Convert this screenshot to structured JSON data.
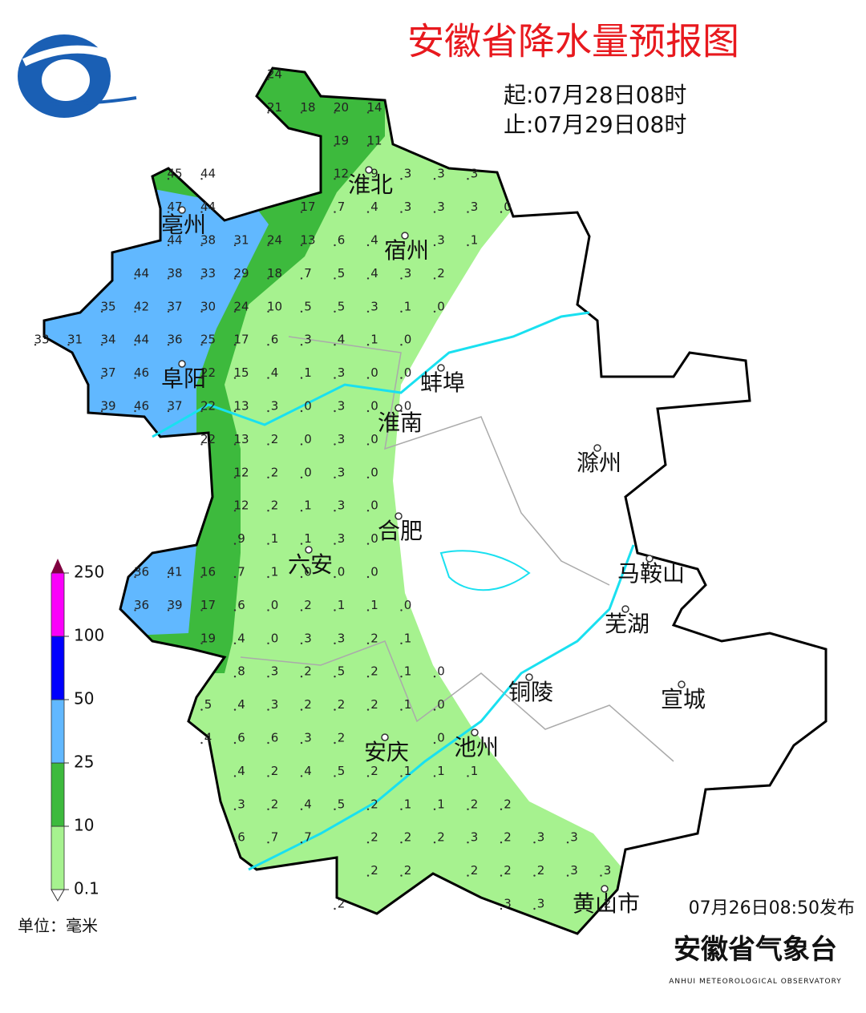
{
  "header": {
    "title": "安徽省降水量预报图",
    "start": "起:07月28日08时",
    "end": "止:07月29日08时"
  },
  "cities": [
    "淮北",
    "亳州",
    "宿州",
    "阜阳",
    "蚌埠",
    "淮南",
    "滁州",
    "合肥",
    "六安",
    "马鞍山",
    "芜湖",
    "铜陵",
    "宣城",
    "安庆",
    "池州",
    "黄山市"
  ],
  "grid_values": [
    [
      null,
      null,
      null,
      null,
      null,
      null,
      null,
      24
    ],
    [
      null,
      null,
      null,
      null,
      null,
      null,
      null,
      21,
      18,
      20,
      14
    ],
    [
      null,
      null,
      null,
      null,
      null,
      null,
      null,
      null,
      null,
      19,
      11
    ],
    [
      null,
      null,
      null,
      null,
      45,
      44,
      null,
      null,
      null,
      12,
      9,
      3,
      3,
      3
    ],
    [
      null,
      null,
      null,
      null,
      47,
      44,
      null,
      null,
      17,
      7,
      4,
      3,
      3,
      3,
      0
    ],
    [
      null,
      null,
      null,
      null,
      44,
      38,
      31,
      24,
      13,
      6,
      4,
      null,
      3,
      1
    ],
    [
      null,
      null,
      null,
      44,
      38,
      33,
      29,
      18,
      7,
      5,
      4,
      3,
      2
    ],
    [
      null,
      null,
      35,
      42,
      37,
      30,
      24,
      10,
      5,
      5,
      3,
      1,
      0
    ],
    [
      33,
      31,
      34,
      44,
      36,
      25,
      17,
      6,
      3,
      4,
      1,
      0
    ],
    [
      null,
      null,
      37,
      46,
      null,
      22,
      15,
      4,
      1,
      3,
      0,
      0
    ],
    [
      null,
      null,
      39,
      46,
      37,
      22,
      13,
      3,
      0,
      3,
      0,
      0
    ],
    [
      null,
      null,
      null,
      null,
      null,
      22,
      13,
      2,
      0,
      3,
      0
    ],
    [
      null,
      null,
      null,
      null,
      null,
      null,
      12,
      2,
      0,
      3,
      0
    ],
    [
      null,
      null,
      null,
      null,
      null,
      null,
      12,
      2,
      1,
      3,
      0
    ],
    [
      null,
      null,
      null,
      null,
      null,
      null,
      9,
      1,
      1,
      3,
      0
    ],
    [
      null,
      null,
      null,
      36,
      41,
      16,
      7,
      1,
      0,
      0,
      0
    ],
    [
      null,
      null,
      null,
      36,
      39,
      17,
      6,
      0,
      2,
      1,
      1,
      0
    ],
    [
      null,
      null,
      null,
      null,
      null,
      19,
      4,
      0,
      3,
      3,
      2,
      1
    ],
    [
      null,
      null,
      null,
      null,
      null,
      null,
      8,
      3,
      2,
      5,
      2,
      1,
      0
    ],
    [
      null,
      null,
      null,
      null,
      null,
      5,
      4,
      3,
      2,
      2,
      2,
      1,
      0
    ],
    [
      null,
      null,
      null,
      null,
      null,
      4,
      6,
      6,
      3,
      2,
      null,
      null,
      0
    ],
    [
      null,
      null,
      null,
      null,
      null,
      null,
      4,
      2,
      4,
      5,
      2,
      1,
      1,
      1
    ],
    [
      null,
      null,
      null,
      null,
      null,
      null,
      3,
      2,
      4,
      5,
      2,
      1,
      1,
      2,
      2
    ],
    [
      null,
      null,
      null,
      null,
      null,
      null,
      6,
      7,
      7,
      null,
      2,
      2,
      2,
      3,
      2,
      3,
      3
    ],
    [
      null,
      null,
      null,
      null,
      null,
      null,
      null,
      null,
      null,
      null,
      2,
      2,
      null,
      2,
      2,
      2,
      3,
      3
    ],
    [
      null,
      null,
      null,
      null,
      null,
      null,
      null,
      null,
      null,
      2,
      null,
      null,
      null,
      null,
      3,
      3,
      null,
      2
    ]
  ],
  "legend": {
    "ticks": [
      0.1,
      10,
      25,
      50,
      100,
      250
    ],
    "colors": [
      "#a6f28f",
      "#3dba3d",
      "#61b8ff",
      "#0000fe",
      "#fa00fa",
      "#800040"
    ],
    "unit": "单位：毫米"
  },
  "footer": {
    "issued": "07月26日08:50发布",
    "agency": "安徽省气象台",
    "agency_en": "ANHUI METEOROLOGICAL OBSERVATORY"
  }
}
